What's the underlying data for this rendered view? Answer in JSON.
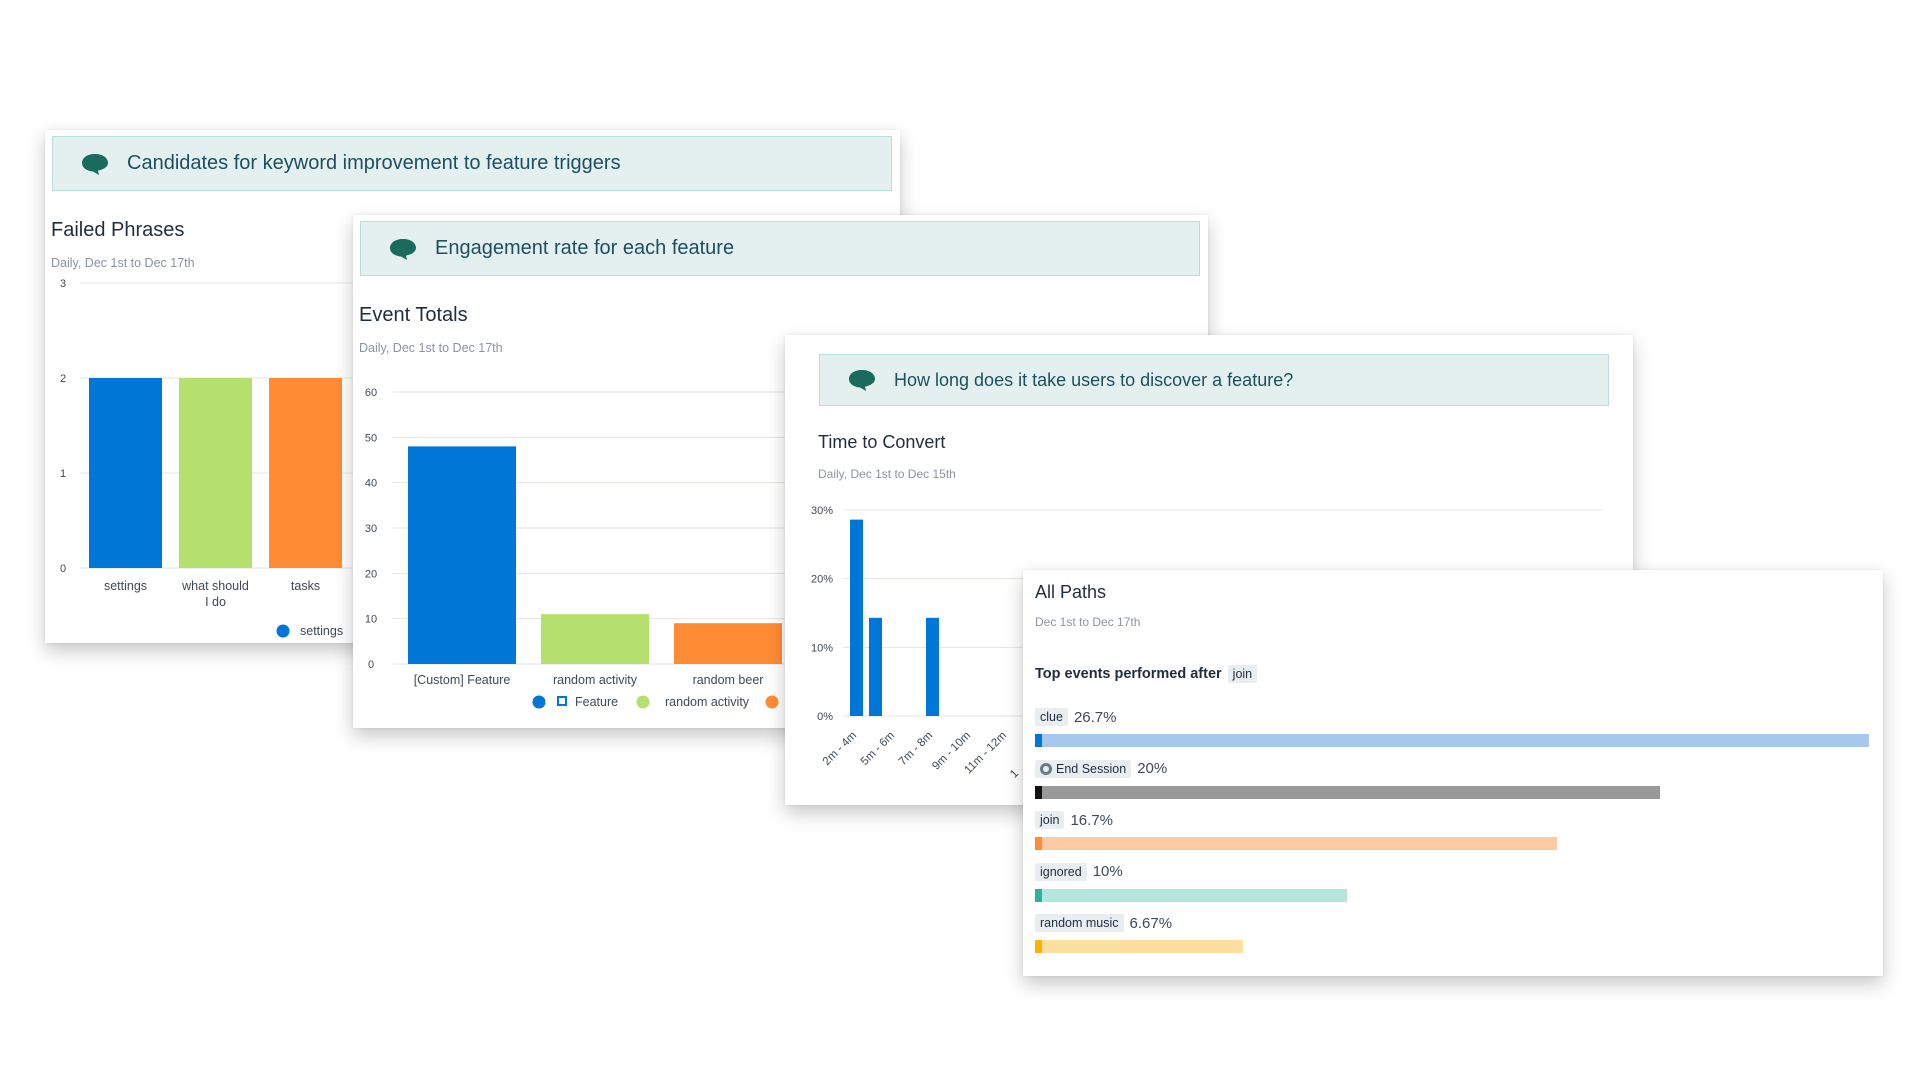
{
  "colors": {
    "blue": "#0076d6",
    "green": "#b5e06d",
    "orange": "#ff8c34",
    "banner_bg": "#e3f0ef",
    "bubble": "#1a6b5e"
  },
  "cards": {
    "card1": {
      "banner": "Candidates for keyword improvement to feature triggers",
      "title": "Failed Phrases",
      "subtitle": "Daily, Dec 1st to Dec 17th"
    },
    "card2": {
      "banner": "Engagement rate for each feature",
      "title": "Event Totals",
      "subtitle": "Daily, Dec 1st to Dec 17th"
    },
    "card3": {
      "banner": "How long does it take users to discover a feature?",
      "title": "Time to Convert",
      "subtitle": "Daily, Dec 1st to Dec 15th"
    },
    "card4": {
      "title": "All Paths",
      "subtitle": "Dec 1st to Dec 17th",
      "heading": "Top events performed after",
      "heading_tag": "join"
    }
  },
  "chart_data": [
    {
      "id": "failed-phrases",
      "type": "bar",
      "title": "Failed Phrases",
      "categories": [
        "settings",
        "what should I do",
        "tasks"
      ],
      "category_lines": [
        [
          "settings"
        ],
        [
          "what should",
          "I do"
        ],
        [
          "tasks"
        ]
      ],
      "values": [
        2,
        2,
        2
      ],
      "colors": [
        "#0076d6",
        "#b5e06d",
        "#ff8c34"
      ],
      "ylim": [
        0,
        3
      ],
      "yticks": [
        "0",
        "1",
        "2",
        "3"
      ],
      "legend": [
        {
          "name": "settings",
          "color": "#0076d6"
        }
      ],
      "grid": true
    },
    {
      "id": "event-totals",
      "type": "bar",
      "title": "Event Totals",
      "categories": [
        "[Custom] Feature",
        "random activity",
        "random beer"
      ],
      "values": [
        48,
        11,
        9
      ],
      "colors": [
        "#0076d6",
        "#b5e06d",
        "#ff8c34"
      ],
      "ylim": [
        0,
        60
      ],
      "yticks": [
        "0",
        "10",
        "20",
        "30",
        "40",
        "50",
        "60"
      ],
      "legend": [
        {
          "name": "Feature",
          "color": "#0076d6"
        },
        {
          "name": "random activity",
          "color": "#b5e06d"
        },
        {
          "name": "",
          "color": "#ff8c34"
        }
      ],
      "grid": true
    },
    {
      "id": "time-to-convert",
      "type": "bar",
      "title": "Time to Convert",
      "categories": [
        "2m - 4m",
        "5m - 6m",
        "7m - 8m",
        "9m - 10m",
        "11m - 12m"
      ],
      "visible_category_fragment": "1",
      "x_values": [
        1,
        2,
        5
      ],
      "values": [
        28.6,
        14.3,
        14.3
      ],
      "ylim": [
        0,
        30
      ],
      "yticks": [
        "0%",
        "10%",
        "20%",
        "30%"
      ],
      "color": "#0076d6",
      "grid": true
    },
    {
      "id": "all-paths",
      "type": "bar",
      "title": "All Paths",
      "items": [
        {
          "label": "clue",
          "value_text": "26.7%",
          "value": 26.7,
          "color": "#a5c8ec",
          "cap": "#0076d6",
          "icon": ""
        },
        {
          "label": "End Session",
          "value_text": "20%",
          "value": 20,
          "color": "#999999",
          "cap": "#111111",
          "icon": "end-session-icon"
        },
        {
          "label": "join",
          "value_text": "16.7%",
          "value": 16.7,
          "color": "#fccba4",
          "cap": "#ff8c34",
          "icon": ""
        },
        {
          "label": "ignored",
          "value_text": "10%",
          "value": 10,
          "color": "#b4e6de",
          "cap": "#29b39c",
          "icon": ""
        },
        {
          "label": "random music",
          "value_text": "6.67%",
          "value": 6.67,
          "color": "#fde0a0",
          "cap": "#fbb300",
          "icon": ""
        }
      ]
    }
  ]
}
